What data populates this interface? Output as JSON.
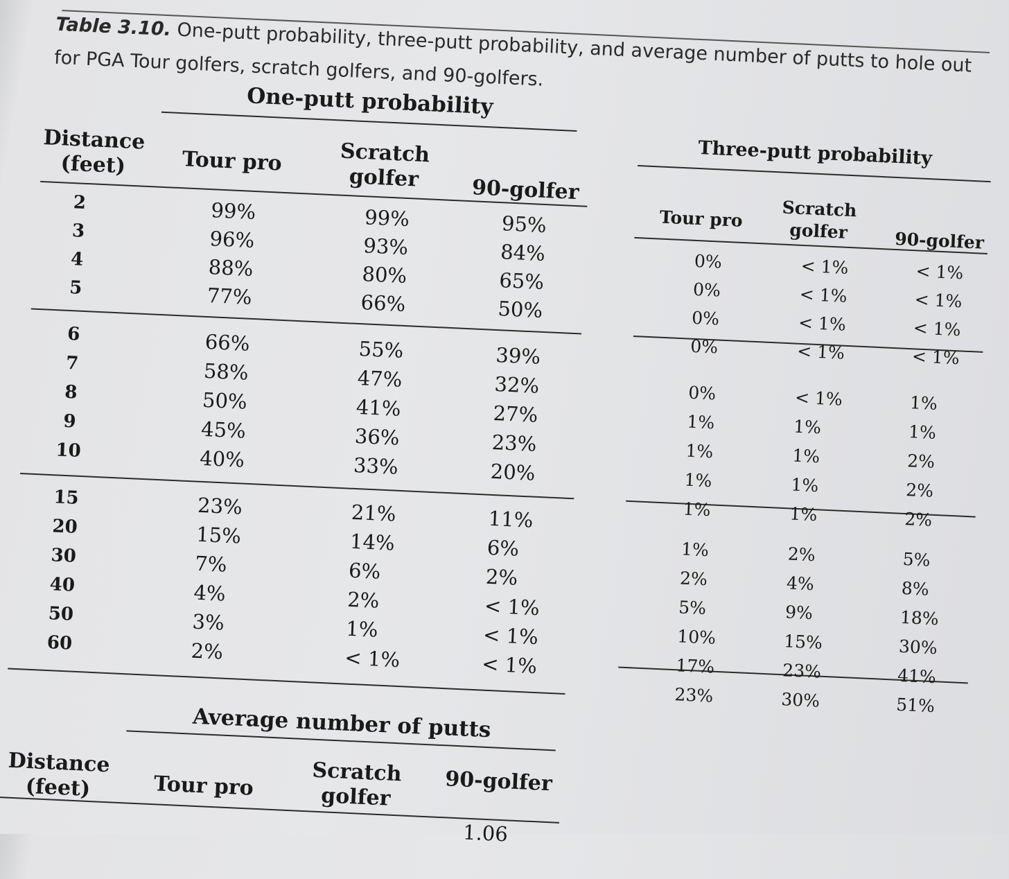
{
  "caption": {
    "label": "Table 3.10.",
    "text": "One-putt probability, three-putt probability, and average number of putts to hole out for PGA Tour golfers, scratch golfers, and 90-golfers."
  },
  "headers": {
    "distance": "Distance (feet)",
    "one_putt_title": "One-putt probability",
    "three_putt_title": "Three-putt probability",
    "avg_title": "Average number of putts",
    "tour_pro": "Tour pro",
    "scratch": "Scratch golfer",
    "ninety": "90-golfer"
  },
  "rows": [
    {
      "dist": "2",
      "one": [
        "99%",
        "99%",
        "95%"
      ],
      "three": [
        "0%",
        "< 1%",
        "< 1%"
      ]
    },
    {
      "dist": "3",
      "one": [
        "96%",
        "93%",
        "84%"
      ],
      "three": [
        "0%",
        "< 1%",
        "< 1%"
      ]
    },
    {
      "dist": "4",
      "one": [
        "88%",
        "80%",
        "65%"
      ],
      "three": [
        "0%",
        "< 1%",
        "< 1%"
      ]
    },
    {
      "dist": "5",
      "one": [
        "77%",
        "66%",
        "50%"
      ],
      "three": [
        "0%",
        "< 1%",
        "< 1%"
      ]
    },
    {
      "dist": "6",
      "one": [
        "66%",
        "55%",
        "39%"
      ],
      "three": [
        "0%",
        "< 1%",
        "1%"
      ]
    },
    {
      "dist": "7",
      "one": [
        "58%",
        "47%",
        "32%"
      ],
      "three": [
        "1%",
        "1%",
        "1%"
      ]
    },
    {
      "dist": "8",
      "one": [
        "50%",
        "41%",
        "27%"
      ],
      "three": [
        "1%",
        "1%",
        "2%"
      ]
    },
    {
      "dist": "9",
      "one": [
        "45%",
        "36%",
        "23%"
      ],
      "three": [
        "1%",
        "1%",
        "2%"
      ]
    },
    {
      "dist": "10",
      "one": [
        "40%",
        "33%",
        "20%"
      ],
      "three": [
        "1%",
        "1%",
        "2%"
      ]
    },
    {
      "dist": "15",
      "one": [
        "23%",
        "21%",
        "11%"
      ],
      "three": [
        "1%",
        "2%",
        "5%"
      ]
    },
    {
      "dist": "20",
      "one": [
        "15%",
        "14%",
        "6%"
      ],
      "three": [
        "2%",
        "4%",
        "8%"
      ]
    },
    {
      "dist": "30",
      "one": [
        "7%",
        "6%",
        "2%"
      ],
      "three": [
        "5%",
        "9%",
        "18%"
      ]
    },
    {
      "dist": "40",
      "one": [
        "4%",
        "2%",
        "< 1%"
      ],
      "three": [
        "10%",
        "15%",
        "30%"
      ]
    },
    {
      "dist": "50",
      "one": [
        "3%",
        "1%",
        "< 1%"
      ],
      "three": [
        "17%",
        "23%",
        "41%"
      ]
    },
    {
      "dist": "60",
      "one": [
        "2%",
        "< 1%",
        "< 1%"
      ],
      "three": [
        "23%",
        "30%",
        "51%"
      ]
    }
  ],
  "avg_first_row": {
    "ninety": "1.06"
  }
}
